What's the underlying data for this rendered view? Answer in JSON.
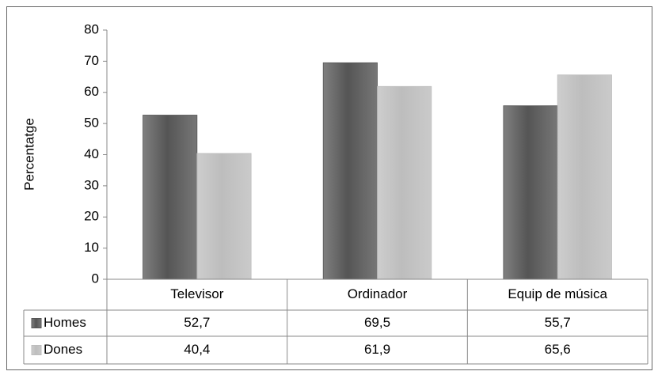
{
  "chart_data": {
    "type": "bar",
    "y_label": "Percentatge",
    "categories": [
      "Televisor",
      "Ordinador",
      "Equip de música"
    ],
    "series": [
      {
        "name": "Homes",
        "color": "#555555",
        "values": [
          52.7,
          69.5,
          55.7
        ],
        "value_labels": [
          "52,7",
          "69,5",
          "55,7"
        ]
      },
      {
        "name": "Dones",
        "color": "#bdbdbd",
        "values": [
          40.4,
          61.9,
          65.6
        ],
        "value_labels": [
          "40,4",
          "61,9",
          "65,6"
        ]
      }
    ],
    "ylim": [
      0,
      80
    ],
    "yticks": [
      0,
      10,
      20,
      30,
      40,
      50,
      60,
      70,
      80
    ]
  }
}
